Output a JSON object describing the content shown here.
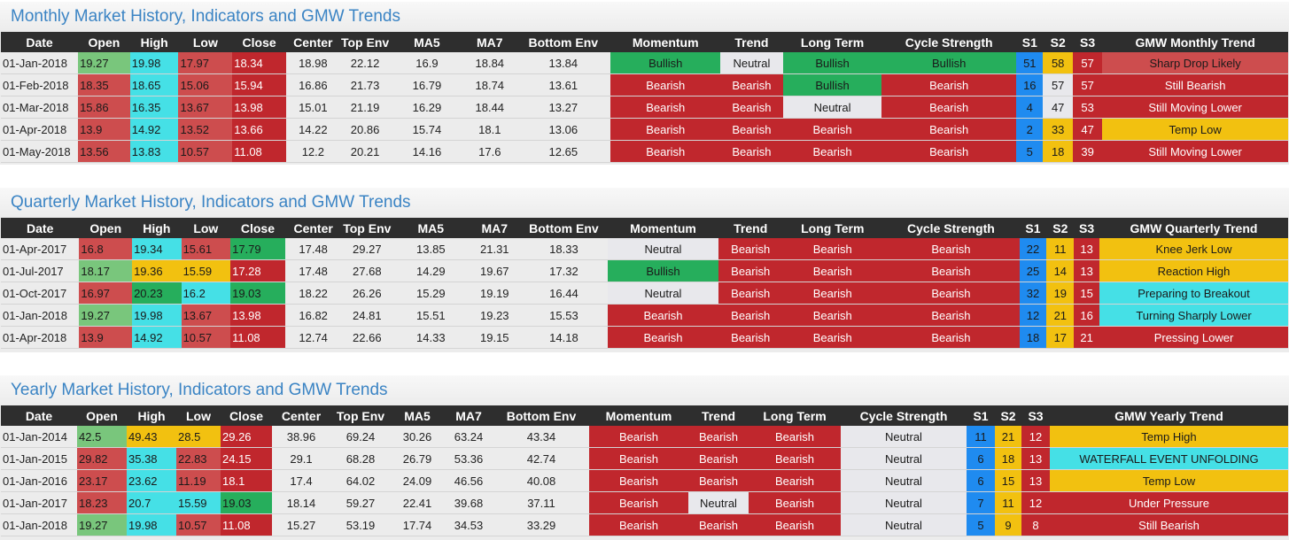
{
  "colors": {
    "green": "#26ae5c",
    "light_green": "#79c67c",
    "red": "#c0272d",
    "light_red": "#cd4d4e",
    "cyan": "#45e0e6",
    "yellow": "#f2c110",
    "blue": "#1f8bf0",
    "neutral": "#e8e8ec",
    "header_bg": "#2e2e2e",
    "title_blue": "#3b84c4"
  },
  "monthly": {
    "title": "Monthly Market History, Indicators and GMW Trends",
    "headers": [
      "Date",
      "Open",
      "High",
      "Low",
      "Close",
      "Center",
      "Top Env",
      "MA5",
      "MA7",
      "Bottom Env",
      "Momentum",
      "Trend",
      "Long Term",
      "Cycle Strength",
      "S1",
      "S2",
      "S3",
      "GMW Monthly Trend"
    ],
    "rows": [
      {
        "date": "01-Jan-2018",
        "open": "19.27",
        "high": "19.98",
        "low": "17.97",
        "close": "18.34",
        "center": "18.98",
        "top_env": "22.12",
        "ma5": "16.9",
        "ma7": "18.84",
        "bottom_env": "13.84",
        "momentum": "Bullish",
        "trend": "Neutral",
        "long_term": "Bullish",
        "cycle_strength": "Bullish",
        "s1": "51",
        "s2": "58",
        "s3": "57",
        "gmw": "Sharp Drop Likely"
      },
      {
        "date": "01-Feb-2018",
        "open": "18.35",
        "high": "18.65",
        "low": "15.06",
        "close": "15.94",
        "center": "16.86",
        "top_env": "21.73",
        "ma5": "16.79",
        "ma7": "18.74",
        "bottom_env": "13.61",
        "momentum": "Bearish",
        "trend": "Bearish",
        "long_term": "Bullish",
        "cycle_strength": "Bearish",
        "s1": "16",
        "s2": "57",
        "s3": "57",
        "gmw": "Still Bearish"
      },
      {
        "date": "01-Mar-2018",
        "open": "15.86",
        "high": "16.35",
        "low": "13.67",
        "close": "13.98",
        "center": "15.01",
        "top_env": "21.19",
        "ma5": "16.29",
        "ma7": "18.44",
        "bottom_env": "13.27",
        "momentum": "Bearish",
        "trend": "Bearish",
        "long_term": "Neutral",
        "cycle_strength": "Bearish",
        "s1": "4",
        "s2": "47",
        "s3": "53",
        "gmw": "Still Moving Lower"
      },
      {
        "date": "01-Apr-2018",
        "open": "13.9",
        "high": "14.92",
        "low": "13.52",
        "close": "13.66",
        "center": "14.22",
        "top_env": "20.86",
        "ma5": "15.74",
        "ma7": "18.1",
        "bottom_env": "13.06",
        "momentum": "Bearish",
        "trend": "Bearish",
        "long_term": "Bearish",
        "cycle_strength": "Bearish",
        "s1": "2",
        "s2": "33",
        "s3": "47",
        "gmw": "Temp Low"
      },
      {
        "date": "01-May-2018",
        "open": "13.56",
        "high": "13.83",
        "low": "10.57",
        "close": "11.08",
        "center": "12.2",
        "top_env": "20.21",
        "ma5": "14.16",
        "ma7": "17.6",
        "bottom_env": "12.65",
        "momentum": "Bearish",
        "trend": "Bearish",
        "long_term": "Bearish",
        "cycle_strength": "Bearish",
        "s1": "5",
        "s2": "18",
        "s3": "39",
        "gmw": "Still Moving Lower"
      }
    ]
  },
  "quarterly": {
    "title": "Quarterly Market History, Indicators and GMW Trends",
    "headers": [
      "Date",
      "Open",
      "High",
      "Low",
      "Close",
      "Center",
      "Top Env",
      "MA5",
      "MA7",
      "Bottom Env",
      "Momentum",
      "Trend",
      "Long Term",
      "Cycle Strength",
      "S1",
      "S2",
      "S3",
      "GMW Quarterly Trend"
    ],
    "rows": [
      {
        "date": "01-Apr-2017",
        "open": "16.8",
        "high": "19.34",
        "low": "15.61",
        "close": "17.79",
        "center": "17.48",
        "top_env": "29.27",
        "ma5": "13.85",
        "ma7": "21.31",
        "bottom_env": "18.33",
        "momentum": "Neutral",
        "trend": "Bearish",
        "long_term": "Bearish",
        "cycle_strength": "Bearish",
        "s1": "22",
        "s2": "11",
        "s3": "13",
        "gmw": "Knee Jerk Low"
      },
      {
        "date": "01-Jul-2017",
        "open": "18.17",
        "high": "19.36",
        "low": "15.59",
        "close": "17.28",
        "center": "17.48",
        "top_env": "27.68",
        "ma5": "14.29",
        "ma7": "19.67",
        "bottom_env": "17.32",
        "momentum": "Bullish",
        "trend": "Bearish",
        "long_term": "Bearish",
        "cycle_strength": "Bearish",
        "s1": "25",
        "s2": "14",
        "s3": "13",
        "gmw": "Reaction High"
      },
      {
        "date": "01-Oct-2017",
        "open": "16.97",
        "high": "20.23",
        "low": "16.2",
        "close": "19.03",
        "center": "18.22",
        "top_env": "26.26",
        "ma5": "15.29",
        "ma7": "19.19",
        "bottom_env": "16.44",
        "momentum": "Neutral",
        "trend": "Bearish",
        "long_term": "Bearish",
        "cycle_strength": "Bearish",
        "s1": "32",
        "s2": "19",
        "s3": "15",
        "gmw": "Preparing to Breakout"
      },
      {
        "date": "01-Jan-2018",
        "open": "19.27",
        "high": "19.98",
        "low": "13.67",
        "close": "13.98",
        "center": "16.82",
        "top_env": "24.81",
        "ma5": "15.51",
        "ma7": "19.23",
        "bottom_env": "15.53",
        "momentum": "Bearish",
        "trend": "Bearish",
        "long_term": "Bearish",
        "cycle_strength": "Bearish",
        "s1": "12",
        "s2": "21",
        "s3": "16",
        "gmw": "Turning Sharply Lower"
      },
      {
        "date": "01-Apr-2018",
        "open": "13.9",
        "high": "14.92",
        "low": "10.57",
        "close": "11.08",
        "center": "12.74",
        "top_env": "22.66",
        "ma5": "14.33",
        "ma7": "19.15",
        "bottom_env": "14.18",
        "momentum": "Bearish",
        "trend": "Bearish",
        "long_term": "Bearish",
        "cycle_strength": "Bearish",
        "s1": "18",
        "s2": "17",
        "s3": "21",
        "gmw": "Pressing Lower"
      }
    ]
  },
  "yearly": {
    "title": "Yearly Market History, Indicators and GMW Trends",
    "headers": [
      "Date",
      "Open",
      "High",
      "Low",
      "Close",
      "Center",
      "Top Env",
      "MA5",
      "MA7",
      "Bottom Env",
      "Momentum",
      "Trend",
      "Long Term",
      "Cycle Strength",
      "S1",
      "S2",
      "S3",
      "GMW Yearly Trend"
    ],
    "rows": [
      {
        "date": "01-Jan-2014",
        "open": "42.5",
        "high": "49.43",
        "low": "28.5",
        "close": "29.26",
        "center": "38.96",
        "top_env": "69.24",
        "ma5": "30.26",
        "ma7": "63.24",
        "bottom_env": "43.34",
        "momentum": "Bearish",
        "trend": "Bearish",
        "long_term": "Bearish",
        "cycle_strength": "Neutral",
        "s1": "11",
        "s2": "21",
        "s3": "12",
        "gmw": "Temp High"
      },
      {
        "date": "01-Jan-2015",
        "open": "29.82",
        "high": "35.38",
        "low": "22.83",
        "close": "24.15",
        "center": "29.1",
        "top_env": "68.28",
        "ma5": "26.79",
        "ma7": "53.36",
        "bottom_env": "42.74",
        "momentum": "Bearish",
        "trend": "Bearish",
        "long_term": "Bearish",
        "cycle_strength": "Neutral",
        "s1": "6",
        "s2": "18",
        "s3": "13",
        "gmw": "WATERFALL EVENT UNFOLDING"
      },
      {
        "date": "01-Jan-2016",
        "open": "23.17",
        "high": "23.62",
        "low": "11.19",
        "close": "18.1",
        "center": "17.4",
        "top_env": "64.02",
        "ma5": "24.09",
        "ma7": "46.56",
        "bottom_env": "40.08",
        "momentum": "Bearish",
        "trend": "Bearish",
        "long_term": "Bearish",
        "cycle_strength": "Neutral",
        "s1": "6",
        "s2": "15",
        "s3": "13",
        "gmw": "Temp Low"
      },
      {
        "date": "01-Jan-2017",
        "open": "18.23",
        "high": "20.7",
        "low": "15.59",
        "close": "19.03",
        "center": "18.14",
        "top_env": "59.27",
        "ma5": "22.41",
        "ma7": "39.68",
        "bottom_env": "37.11",
        "momentum": "Bearish",
        "trend": "Neutral",
        "long_term": "Bearish",
        "cycle_strength": "Neutral",
        "s1": "7",
        "s2": "11",
        "s3": "12",
        "gmw": "Under Pressure"
      },
      {
        "date": "01-Jan-2018",
        "open": "19.27",
        "high": "19.98",
        "low": "10.57",
        "close": "11.08",
        "center": "15.27",
        "top_env": "53.19",
        "ma5": "17.74",
        "ma7": "34.53",
        "bottom_env": "33.29",
        "momentum": "Bearish",
        "trend": "Bearish",
        "long_term": "Bearish",
        "cycle_strength": "Neutral",
        "s1": "5",
        "s2": "9",
        "s3": "8",
        "gmw": "Still Bearish"
      }
    ]
  }
}
